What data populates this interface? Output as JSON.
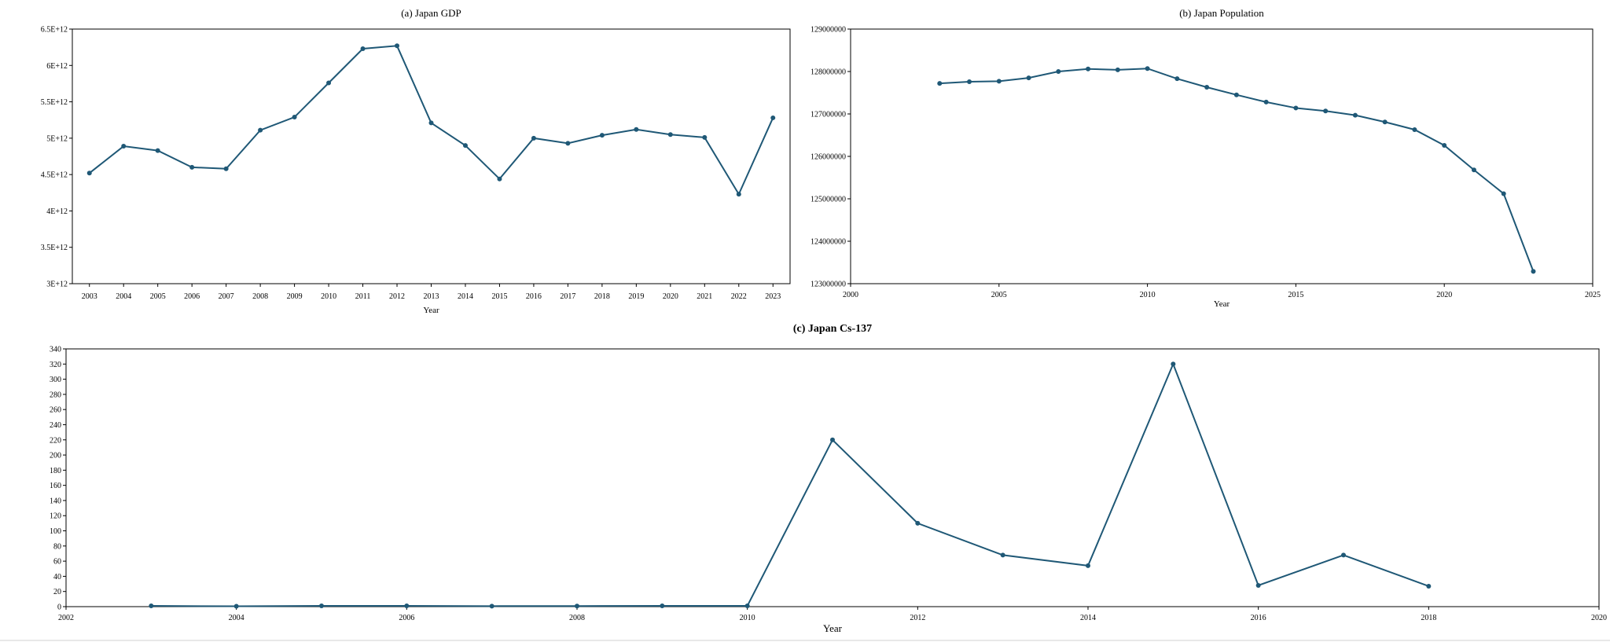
{
  "chart_data": [
    {
      "id": "gdp",
      "type": "line",
      "title": "(a) Japan GDP",
      "xlabel": "Year",
      "ylabel": "",
      "x_axis": "category",
      "x": [
        "2003",
        "2004",
        "2005",
        "2006",
        "2007",
        "2008",
        "2009",
        "2010",
        "2011",
        "2012",
        "2013",
        "2014",
        "2015",
        "2016",
        "2017",
        "2018",
        "2019",
        "2020",
        "2021",
        "2022",
        "2023"
      ],
      "series": [
        {
          "values": [
            4520000000000.0,
            4890000000000.0,
            4830000000000.0,
            4600000000000.0,
            4580000000000.0,
            5110000000000.0,
            5290000000000.0,
            5760000000000.0,
            6230000000000.0,
            6270000000000.0,
            5210000000000.0,
            4900000000000.0,
            4440000000000.0,
            5000000000000.0,
            4930000000000.0,
            5040000000000.0,
            5120000000000.0,
            5050000000000.0,
            5010000000000.0,
            4230000000000.0,
            5280000000000.0
          ]
        }
      ],
      "ylim": [
        3000000000000.0,
        6500000000000.0
      ],
      "yticks": [
        3000000000000.0,
        3500000000000.0,
        4000000000000.0,
        4500000000000.0,
        5000000000000.0,
        5500000000000.0,
        6000000000000.0,
        6500000000000.0
      ],
      "ytick_labels": [
        "3E+12",
        "3.5E+12",
        "4E+12",
        "4.5E+12",
        "5E+12",
        "5.5E+12",
        "6E+12",
        "6.5E+12"
      ],
      "color": "#1f5876",
      "grid": false,
      "legend": "none"
    },
    {
      "id": "population",
      "type": "line",
      "title": "(b) Japan Population",
      "xlabel": "Year",
      "ylabel": "",
      "x_axis": "numeric",
      "x": [
        2003,
        2004,
        2005,
        2006,
        2007,
        2008,
        2009,
        2010,
        2011,
        2012,
        2013,
        2014,
        2015,
        2016,
        2017,
        2018,
        2019,
        2020,
        2021,
        2022,
        2023
      ],
      "series": [
        {
          "values": [
            127720000,
            127760000,
            127770000,
            127850000,
            128000000,
            128060000,
            128040000,
            128070000,
            127830000,
            127630000,
            127450000,
            127280000,
            127140000,
            127070000,
            126970000,
            126810000,
            126630000,
            126260000,
            125680000,
            125120000,
            123290000
          ]
        }
      ],
      "xlim": [
        2000,
        2025
      ],
      "xticks": [
        2000,
        2005,
        2010,
        2015,
        2020,
        2025
      ],
      "ylim": [
        123000000,
        129000000
      ],
      "yticks": [
        123000000,
        124000000,
        125000000,
        126000000,
        127000000,
        128000000,
        129000000
      ],
      "ytick_labels": [
        "123000000",
        "124000000",
        "125000000",
        "126000000",
        "127000000",
        "128000000",
        "129000000"
      ],
      "color": "#1f5876",
      "grid": false,
      "legend": "none"
    },
    {
      "id": "cs137",
      "type": "line",
      "title": "(c)  Japan Cs-137",
      "xlabel": "Year",
      "ylabel": "",
      "x_axis": "numeric",
      "x": [
        2003,
        2004,
        2005,
        2006,
        2007,
        2008,
        2009,
        2010,
        2011,
        2012,
        2013,
        2014,
        2015,
        2016,
        2017,
        2018
      ],
      "series": [
        {
          "values": [
            1,
            0.5,
            1,
            1,
            0.7,
            0.8,
            1,
            1,
            220,
            110,
            68,
            54,
            320,
            28,
            68,
            27
          ]
        }
      ],
      "xlim": [
        2002,
        2020
      ],
      "xticks": [
        2002,
        2004,
        2006,
        2008,
        2010,
        2012,
        2014,
        2016,
        2018,
        2020
      ],
      "ylim": [
        0,
        340
      ],
      "yticks": [
        0,
        20,
        40,
        60,
        80,
        100,
        120,
        140,
        160,
        180,
        200,
        220,
        240,
        260,
        280,
        300,
        320,
        340
      ],
      "color": "#1f5876",
      "grid": false,
      "legend": "none"
    }
  ]
}
